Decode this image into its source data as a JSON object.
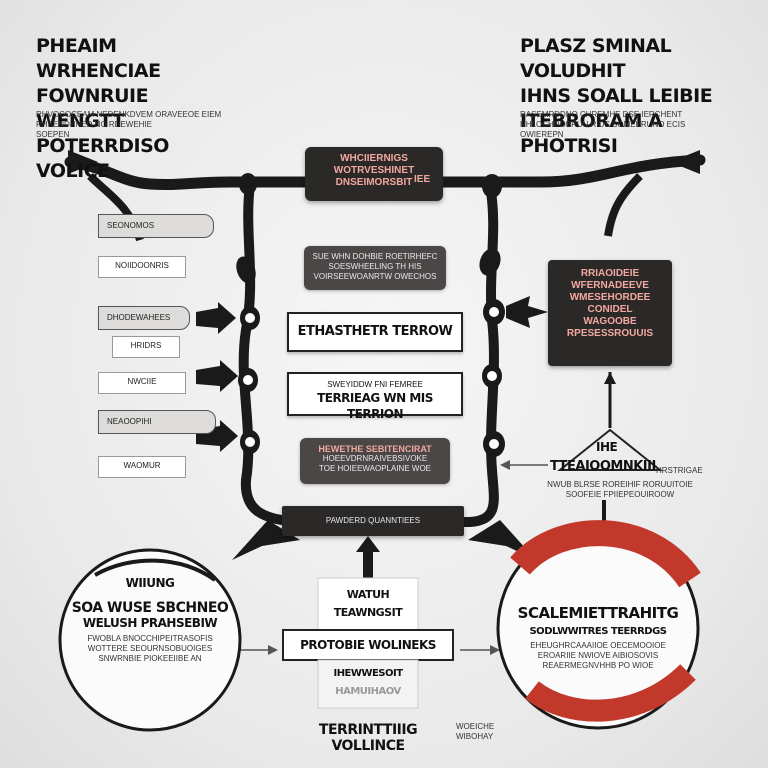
{
  "top_left": {
    "title_lines": [
      "PHEAIM WRHENCIAE",
      "FOWNRUIE WENGTT",
      "POTERRDISO VOLICE"
    ],
    "body_lines": [
      "RHVOCOCEAM NEDENKDVEM ORAVEEOE EIEM",
      "RHSENDHNED NO RDEWEHIE",
      "SOEPEN"
    ]
  },
  "top_right": {
    "title_lines": [
      "PLASZ SMINAL VOLUDHIT",
      "IHNS SOALL LEIBIE",
      "ITEBRORAM A PHOTRISI"
    ],
    "body_lines": [
      "RASEMRDDNO CHREMHE DSE IERCHENT",
      "RHLOCHROERUU RIDS SOMEERUNO ECIS",
      "OWIEREPN"
    ]
  },
  "center": {
    "top_box_lines": [
      "WHCIIERNIGS",
      "WOTRVESHINET",
      "DNSEIMORSBIT"
    ],
    "top_box_side": "IEE",
    "gray_box_1_lines": [
      "SUE WHN DOHBIE ROETIRHEFC",
      "SOESWHEELING TH HIS",
      "VOIRSEEWOANRTW OWECHOS"
    ],
    "white_box_1": "ETHASTHETR TERROW",
    "white_box_2_lines": [
      "SWEYIDDW FNI FEMREE",
      "TERRIEAG WN MIS TERRION"
    ],
    "gray_box_2_lines": [
      "HEWETHE SEBITENCIRAT",
      "HOEEVDRNRAIVEBSIVOKE",
      "TOE HOIEEWAOPLAINE WOE"
    ],
    "bottom_label": "PAWDERD QUANNTIEES"
  },
  "left_column": {
    "tabs": [
      "SEONOMOS",
      "NOIIDOONRIS",
      "DHODEWAHEES",
      "HRIDRS",
      "NWCIIE",
      "NEAOOPIHI",
      "WAOMUR"
    ]
  },
  "right_panel": {
    "box_lines": [
      "RRIAOIDEIE",
      "WFERNADEEVE",
      "WMESEHORDEE",
      "CONIDEL",
      "WAGOOBE",
      "RPESESSROUUIS"
    ],
    "label_top": "IHE",
    "label_main": "TTEAIOOMNKIII",
    "label_side": "HRSTRIGAE",
    "label_body_lines": [
      "NWUB BLRSE ROREIHIF RORUUITOIE",
      "SOOFEIE FPIIEPEOUIROOW"
    ]
  },
  "bottom_left_circle": {
    "line1": "WIIUNG",
    "line2": "SOA WUSE SBCHNEO",
    "line3": "WELUSH PRAHSEBIW",
    "body_lines": [
      "FWOBLA BNOCCHIPEITRASOFIS",
      "WOTTERE SEOURNSOBUOIGES",
      "SNWRNBIE PIOKEEIIBE AN"
    ]
  },
  "bottom_center": {
    "line1": "WATUH",
    "line2": "TEAWNGSIT",
    "line3": "PROTOBIE WOLINEKS",
    "line4": "IHEWWESOIT",
    "line5": "HAMUIHAOV",
    "footer": "TERRINTTIIIG VOLLINCE",
    "footer_side_lines": [
      "WOEICHE",
      "WIBOHAY"
    ]
  },
  "bottom_right_circle": {
    "line1": "SCALEMIETTRAHITG",
    "line2": "SODLWWITRES TEERRDGS",
    "body_lines": [
      "EHEUGHRCAAAIIOE OECEMOOIOE",
      "EROARIIE NWIOVE AIBIOSOVIS",
      "REAERMEGNVHHB PO WIOE"
    ]
  }
}
